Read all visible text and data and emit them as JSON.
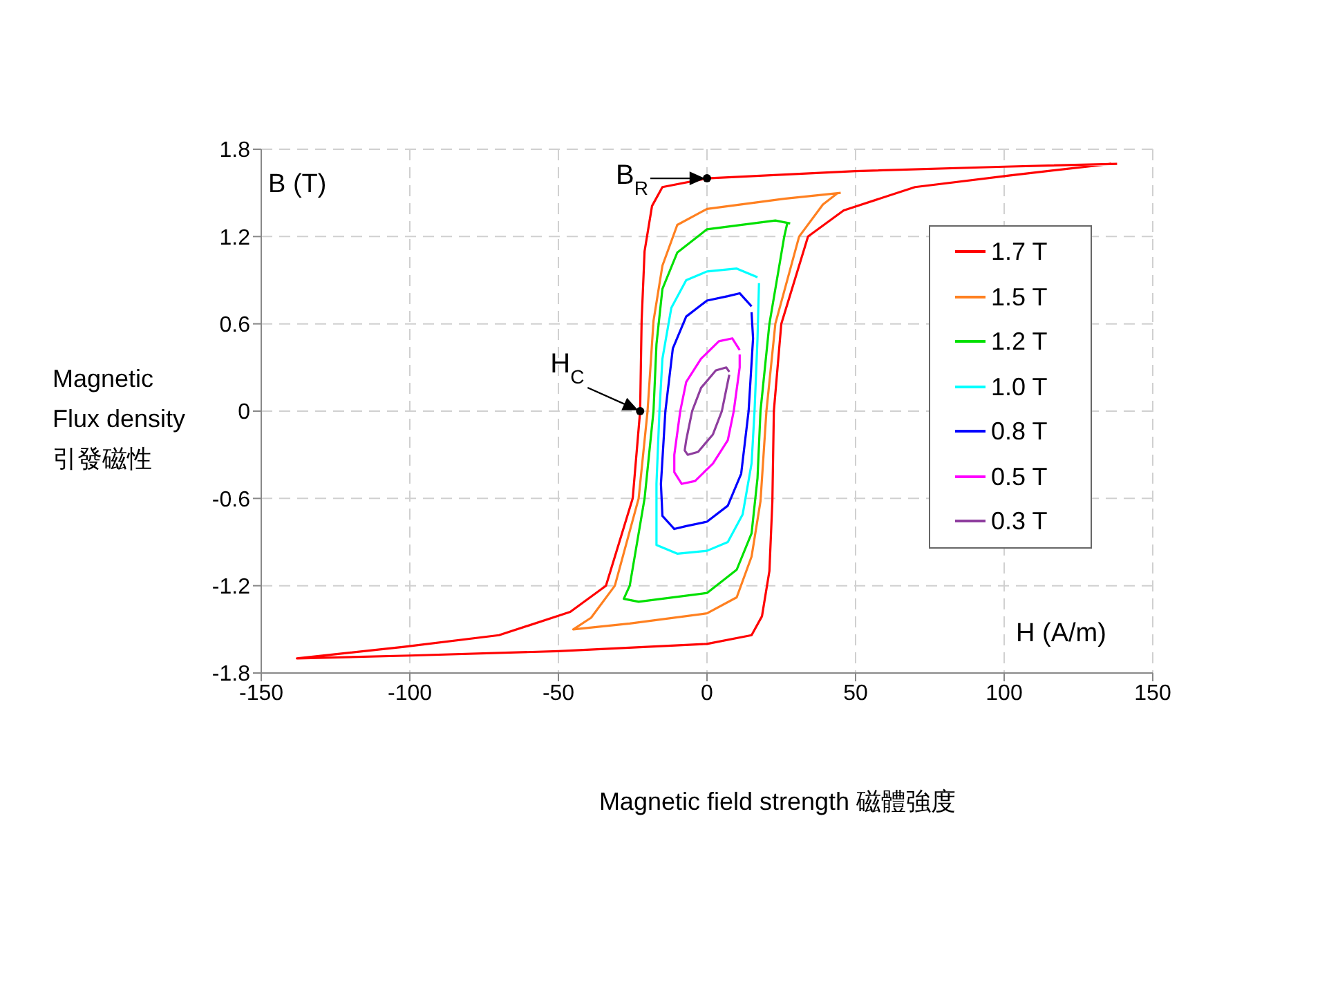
{
  "chart_data": {
    "type": "line",
    "xlabel": "H (A/m)",
    "ylabel": "B (T)",
    "annotations": [
      "Magnetic Flux density 引發磁性",
      "Magnetic field strength 磁體強度",
      {
        "text": "B$_{R}$",
        "x": 0,
        "y": 1.6
      },
      {
        "text": "H$_{C}$",
        "x": -22.5,
        "y": 0
      }
    ],
    "xlim": [
      -150,
      150
    ],
    "xticks": [
      -150,
      -100,
      -50,
      0,
      50,
      100,
      150
    ],
    "ylim": [
      -1.8,
      1.8
    ],
    "yticks": [
      -1.8,
      -1.2,
      -0.6,
      0,
      0.6,
      1.2,
      1.8
    ],
    "grid": true,
    "legend": "right",
    "series": [
      {
        "name": "1.7 T",
        "color": "#ff0000",
        "x": [
          138,
          100,
          50,
          0,
          -15,
          -18.5,
          -21,
          -22,
          -22.5,
          -25,
          -34,
          -46,
          -70,
          -102,
          -138,
          -100,
          -50,
          0,
          15,
          18.5,
          21,
          22,
          22.5,
          25,
          34,
          46,
          70,
          102,
          136
        ],
        "values": [
          1.7,
          1.68,
          1.65,
          1.6,
          1.54,
          1.41,
          1.1,
          0.62,
          0,
          -0.6,
          -1.2,
          -1.38,
          -1.54,
          -1.62,
          -1.7,
          -1.68,
          -1.65,
          -1.6,
          -1.54,
          -1.41,
          -1.1,
          -0.62,
          0,
          0.6,
          1.2,
          1.38,
          1.54,
          1.62,
          1.7
        ]
      },
      {
        "name": "1.5 T",
        "color": "#ff8020",
        "x": [
          45,
          26,
          0,
          -10,
          -15,
          -18,
          -20,
          -23,
          -31,
          -39,
          -45,
          -26,
          0,
          10,
          15,
          18,
          20,
          23,
          31,
          39,
          44
        ],
        "values": [
          1.5,
          1.46,
          1.39,
          1.28,
          1.0,
          0.62,
          0,
          -0.6,
          -1.2,
          -1.42,
          -1.5,
          -1.46,
          -1.39,
          -1.28,
          -1.0,
          -0.62,
          0,
          0.6,
          1.2,
          1.42,
          1.5
        ]
      },
      {
        "name": "1.2 T",
        "color": "#00e000",
        "x": [
          28,
          23,
          0,
          -10,
          -15,
          -17,
          -18,
          -21,
          -26,
          -28,
          -23,
          0,
          10,
          15,
          17,
          18,
          21,
          26,
          27
        ],
        "values": [
          1.29,
          1.31,
          1.25,
          1.09,
          0.84,
          0.46,
          0,
          -0.6,
          -1.2,
          -1.29,
          -1.31,
          -1.25,
          -1.09,
          -0.84,
          -0.46,
          0,
          0.6,
          1.2,
          1.29
        ]
      },
      {
        "name": "1.0 T",
        "color": "#00ffff",
        "x": [
          17,
          10,
          0,
          -7,
          -12,
          -15,
          -16,
          -17,
          -17,
          -10,
          0,
          7,
          12,
          15,
          16,
          17,
          17.5
        ],
        "values": [
          0.92,
          0.98,
          0.96,
          0.9,
          0.71,
          0.36,
          0,
          -0.5,
          -0.92,
          -0.98,
          -0.96,
          -0.9,
          -0.71,
          -0.36,
          0,
          0.5,
          0.88
        ]
      },
      {
        "name": "0.8 T",
        "color": "#0000ff",
        "x": [
          15,
          11,
          7,
          0,
          -7,
          -11.5,
          -14,
          -15.5,
          -15,
          -11,
          -7,
          0,
          7,
          11.5,
          14,
          15.5,
          15
        ],
        "values": [
          0.72,
          0.81,
          0.79,
          0.76,
          0.65,
          0.43,
          0,
          -0.5,
          -0.72,
          -0.81,
          -0.79,
          -0.76,
          -0.65,
          -0.43,
          0,
          0.5,
          0.68
        ]
      },
      {
        "name": "0.5 T",
        "color": "#ff00ff",
        "x": [
          11,
          8.5,
          4,
          -2,
          -7,
          -9,
          -11,
          -11,
          -8.5,
          -4,
          2,
          7,
          9,
          11,
          11
        ],
        "values": [
          0.42,
          0.5,
          0.48,
          0.36,
          0.2,
          0,
          -0.3,
          -0.42,
          -0.5,
          -0.48,
          -0.36,
          -0.2,
          0,
          0.3,
          0.39
        ]
      },
      {
        "name": "0.3 T",
        "color": "#8e3d9e",
        "x": [
          7.5,
          6.5,
          3,
          -2,
          -5,
          -7,
          -7.5,
          -6.5,
          -3,
          2,
          5,
          7,
          7.5
        ],
        "values": [
          0.27,
          0.3,
          0.28,
          0.16,
          0,
          -0.2,
          -0.27,
          -0.3,
          -0.28,
          -0.16,
          0,
          0.2,
          0.25
        ]
      }
    ]
  }
}
